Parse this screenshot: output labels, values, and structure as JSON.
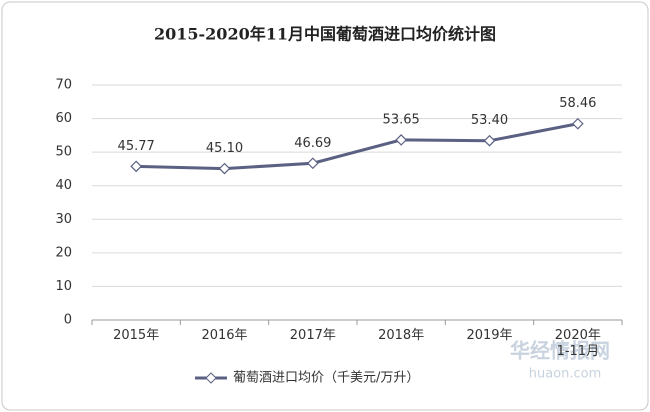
{
  "chart_data": {
    "type": "line",
    "title": "2015-2020年11月中国葡萄酒进口均价统计图",
    "categories": [
      "2015年",
      "2016年",
      "2017年",
      "2018年",
      "2019年",
      "2020年\n1-11月"
    ],
    "series": [
      {
        "name": "葡萄酒进口均价（千美元/万升）",
        "color": "#5b6182",
        "values": [
          45.77,
          45.1,
          46.69,
          53.65,
          53.4,
          58.46
        ],
        "value_labels": [
          "45.77",
          "45.10",
          "46.69",
          "53.65",
          "53.40",
          "58.46"
        ]
      }
    ],
    "ylim": [
      0,
      70
    ],
    "yticks": [
      0,
      10,
      20,
      30,
      40,
      50,
      60,
      70
    ],
    "grid": true,
    "legend": "bottom",
    "watermark": {
      "name": "华经情报网",
      "site": "huaon.com"
    }
  }
}
